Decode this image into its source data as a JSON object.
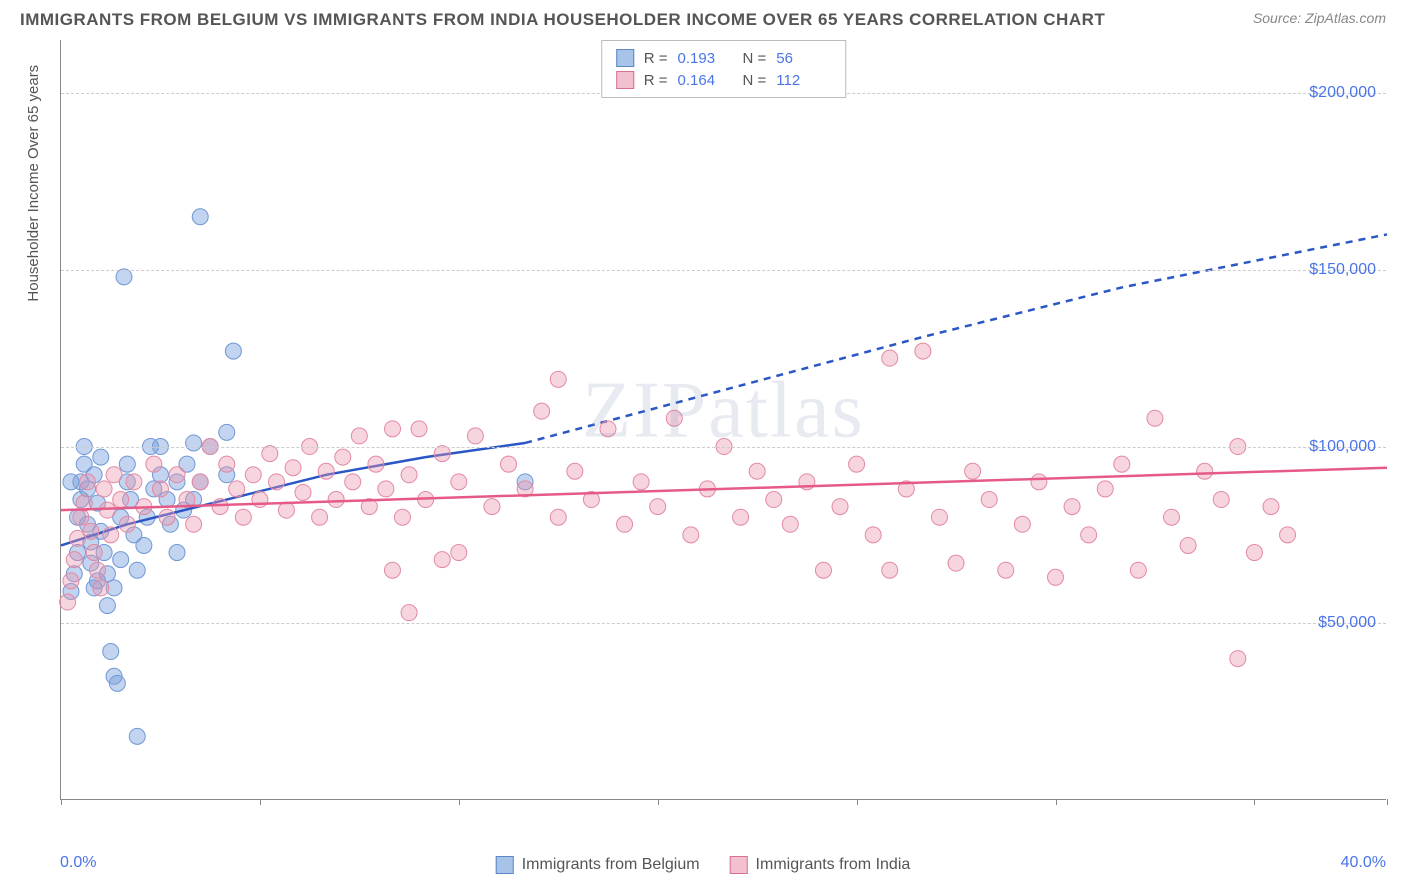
{
  "header": {
    "title": "IMMIGRANTS FROM BELGIUM VS IMMIGRANTS FROM INDIA HOUSEHOLDER INCOME OVER 65 YEARS CORRELATION CHART",
    "source": "Source: ZipAtlas.com"
  },
  "watermark": "ZIPatlas",
  "chart": {
    "type": "scatter",
    "x_axis": {
      "min": 0.0,
      "max": 40.0,
      "unit": "%",
      "label_min": "0.0%",
      "label_max": "40.0%",
      "tick_positions_pct": [
        0,
        15,
        30,
        45,
        60,
        75,
        90,
        100
      ]
    },
    "y_axis": {
      "title": "Householder Income Over 65 years",
      "min": 0,
      "max": 215000,
      "gridlines": [
        50000,
        100000,
        150000,
        200000
      ],
      "gridline_labels": [
        "$50,000",
        "$100,000",
        "$150,000",
        "$200,000"
      ],
      "grid_color": "#d0d0d0"
    },
    "series": [
      {
        "id": "belgium",
        "label": "Immigrants from Belgium",
        "color_fill": "rgba(120,160,220,0.45)",
        "color_stroke": "#6f98d6",
        "swatch_fill": "#a8c3e8",
        "swatch_border": "#5f86c7",
        "r_value": "0.193",
        "n_value": "56",
        "trend": {
          "color": "#2a56c6",
          "width": 2.5,
          "solid_end_x": 14.0,
          "points": [
            {
              "x": 0.0,
              "y": 72000
            },
            {
              "x": 2.0,
              "y": 78000
            },
            {
              "x": 5.0,
              "y": 85000
            },
            {
              "x": 8.0,
              "y": 92000
            },
            {
              "x": 11.0,
              "y": 97000
            },
            {
              "x": 14.0,
              "y": 101000
            },
            {
              "x": 20.0,
              "y": 116000
            },
            {
              "x": 26.0,
              "y": 131000
            },
            {
              "x": 32.0,
              "y": 145000
            },
            {
              "x": 40.0,
              "y": 160000
            }
          ]
        },
        "points": [
          {
            "x": 0.3,
            "y": 59000
          },
          {
            "x": 0.4,
            "y": 64000
          },
          {
            "x": 0.5,
            "y": 70000
          },
          {
            "x": 0.5,
            "y": 80000
          },
          {
            "x": 0.6,
            "y": 85000
          },
          {
            "x": 0.6,
            "y": 90000
          },
          {
            "x": 0.7,
            "y": 95000
          },
          {
            "x": 0.7,
            "y": 100000
          },
          {
            "x": 0.8,
            "y": 88000
          },
          {
            "x": 0.8,
            "y": 78000
          },
          {
            "x": 0.9,
            "y": 73000
          },
          {
            "x": 0.9,
            "y": 67000
          },
          {
            "x": 1.0,
            "y": 60000
          },
          {
            "x": 1.0,
            "y": 92000
          },
          {
            "x": 1.1,
            "y": 84000
          },
          {
            "x": 1.2,
            "y": 97000
          },
          {
            "x": 1.2,
            "y": 76000
          },
          {
            "x": 1.3,
            "y": 70000
          },
          {
            "x": 1.4,
            "y": 64000
          },
          {
            "x": 1.4,
            "y": 55000
          },
          {
            "x": 1.5,
            "y": 42000
          },
          {
            "x": 1.6,
            "y": 35000
          },
          {
            "x": 1.7,
            "y": 33000
          },
          {
            "x": 1.6,
            "y": 60000
          },
          {
            "x": 1.8,
            "y": 68000
          },
          {
            "x": 1.8,
            "y": 80000
          },
          {
            "x": 2.0,
            "y": 90000
          },
          {
            "x": 2.0,
            "y": 95000
          },
          {
            "x": 2.1,
            "y": 85000
          },
          {
            "x": 2.2,
            "y": 75000
          },
          {
            "x": 2.3,
            "y": 65000
          },
          {
            "x": 2.3,
            "y": 18000
          },
          {
            "x": 2.5,
            "y": 72000
          },
          {
            "x": 2.6,
            "y": 80000
          },
          {
            "x": 2.8,
            "y": 88000
          },
          {
            "x": 3.0,
            "y": 92000
          },
          {
            "x": 3.0,
            "y": 100000
          },
          {
            "x": 3.2,
            "y": 85000
          },
          {
            "x": 3.3,
            "y": 78000
          },
          {
            "x": 3.5,
            "y": 90000
          },
          {
            "x": 3.7,
            "y": 82000
          },
          {
            "x": 3.8,
            "y": 95000
          },
          {
            "x": 4.0,
            "y": 85000
          },
          {
            "x": 4.0,
            "y": 101000
          },
          {
            "x": 4.2,
            "y": 90000
          },
          {
            "x": 4.5,
            "y": 100000
          },
          {
            "x": 1.9,
            "y": 148000
          },
          {
            "x": 4.2,
            "y": 165000
          },
          {
            "x": 5.0,
            "y": 92000
          },
          {
            "x": 5.2,
            "y": 127000
          },
          {
            "x": 5.0,
            "y": 104000
          },
          {
            "x": 3.5,
            "y": 70000
          },
          {
            "x": 2.7,
            "y": 100000
          },
          {
            "x": 1.1,
            "y": 62000
          },
          {
            "x": 0.3,
            "y": 90000
          },
          {
            "x": 14.0,
            "y": 90000
          }
        ]
      },
      {
        "id": "india",
        "label": "Immigrants from India",
        "color_fill": "rgba(235,150,175,0.40)",
        "color_stroke": "#e389a3",
        "swatch_fill": "#f3c0cf",
        "swatch_border": "#d8708e",
        "r_value": "0.164",
        "n_value": "112",
        "trend": {
          "color": "#e65a88",
          "width": 2.5,
          "solid_end_x": 40.0,
          "points": [
            {
              "x": 0.0,
              "y": 82000
            },
            {
              "x": 10.0,
              "y": 85000
            },
            {
              "x": 20.0,
              "y": 88000
            },
            {
              "x": 30.0,
              "y": 91000
            },
            {
              "x": 40.0,
              "y": 94000
            }
          ]
        },
        "points": [
          {
            "x": 0.2,
            "y": 56000
          },
          {
            "x": 0.3,
            "y": 62000
          },
          {
            "x": 0.4,
            "y": 68000
          },
          {
            "x": 0.5,
            "y": 74000
          },
          {
            "x": 0.6,
            "y": 80000
          },
          {
            "x": 0.7,
            "y": 84000
          },
          {
            "x": 0.8,
            "y": 90000
          },
          {
            "x": 0.9,
            "y": 76000
          },
          {
            "x": 1.0,
            "y": 70000
          },
          {
            "x": 1.1,
            "y": 65000
          },
          {
            "x": 1.2,
            "y": 60000
          },
          {
            "x": 1.3,
            "y": 88000
          },
          {
            "x": 1.4,
            "y": 82000
          },
          {
            "x": 1.5,
            "y": 75000
          },
          {
            "x": 1.6,
            "y": 92000
          },
          {
            "x": 1.8,
            "y": 85000
          },
          {
            "x": 2.0,
            "y": 78000
          },
          {
            "x": 2.2,
            "y": 90000
          },
          {
            "x": 2.5,
            "y": 83000
          },
          {
            "x": 2.8,
            "y": 95000
          },
          {
            "x": 3.0,
            "y": 88000
          },
          {
            "x": 3.2,
            "y": 80000
          },
          {
            "x": 3.5,
            "y": 92000
          },
          {
            "x": 3.8,
            "y": 85000
          },
          {
            "x": 4.0,
            "y": 78000
          },
          {
            "x": 4.2,
            "y": 90000
          },
          {
            "x": 4.5,
            "y": 100000
          },
          {
            "x": 4.8,
            "y": 83000
          },
          {
            "x": 5.0,
            "y": 95000
          },
          {
            "x": 5.3,
            "y": 88000
          },
          {
            "x": 5.5,
            "y": 80000
          },
          {
            "x": 5.8,
            "y": 92000
          },
          {
            "x": 6.0,
            "y": 85000
          },
          {
            "x": 6.3,
            "y": 98000
          },
          {
            "x": 6.5,
            "y": 90000
          },
          {
            "x": 6.8,
            "y": 82000
          },
          {
            "x": 7.0,
            "y": 94000
          },
          {
            "x": 7.3,
            "y": 87000
          },
          {
            "x": 7.5,
            "y": 100000
          },
          {
            "x": 7.8,
            "y": 80000
          },
          {
            "x": 8.0,
            "y": 93000
          },
          {
            "x": 8.3,
            "y": 85000
          },
          {
            "x": 8.5,
            "y": 97000
          },
          {
            "x": 8.8,
            "y": 90000
          },
          {
            "x": 9.0,
            "y": 103000
          },
          {
            "x": 9.3,
            "y": 83000
          },
          {
            "x": 9.5,
            "y": 95000
          },
          {
            "x": 9.8,
            "y": 88000
          },
          {
            "x": 10.0,
            "y": 105000
          },
          {
            "x": 10.3,
            "y": 80000
          },
          {
            "x": 10.5,
            "y": 92000
          },
          {
            "x": 10.8,
            "y": 105000
          },
          {
            "x": 11.0,
            "y": 85000
          },
          {
            "x": 11.5,
            "y": 98000
          },
          {
            "x": 12.0,
            "y": 90000
          },
          {
            "x": 12.5,
            "y": 103000
          },
          {
            "x": 13.0,
            "y": 83000
          },
          {
            "x": 13.5,
            "y": 95000
          },
          {
            "x": 14.0,
            "y": 88000
          },
          {
            "x": 14.5,
            "y": 110000
          },
          {
            "x": 15.0,
            "y": 80000
          },
          {
            "x": 15.0,
            "y": 119000
          },
          {
            "x": 15.5,
            "y": 93000
          },
          {
            "x": 16.0,
            "y": 85000
          },
          {
            "x": 16.5,
            "y": 105000
          },
          {
            "x": 17.0,
            "y": 78000
          },
          {
            "x": 17.5,
            "y": 90000
          },
          {
            "x": 18.0,
            "y": 83000
          },
          {
            "x": 18.5,
            "y": 108000
          },
          {
            "x": 19.0,
            "y": 75000
          },
          {
            "x": 19.5,
            "y": 88000
          },
          {
            "x": 20.0,
            "y": 100000
          },
          {
            "x": 20.5,
            "y": 80000
          },
          {
            "x": 21.0,
            "y": 93000
          },
          {
            "x": 21.5,
            "y": 85000
          },
          {
            "x": 22.0,
            "y": 78000
          },
          {
            "x": 22.5,
            "y": 90000
          },
          {
            "x": 23.0,
            "y": 65000
          },
          {
            "x": 23.5,
            "y": 83000
          },
          {
            "x": 24.0,
            "y": 95000
          },
          {
            "x": 24.5,
            "y": 75000
          },
          {
            "x": 25.0,
            "y": 125000
          },
          {
            "x": 25.0,
            "y": 65000
          },
          {
            "x": 25.5,
            "y": 88000
          },
          {
            "x": 26.0,
            "y": 127000
          },
          {
            "x": 26.5,
            "y": 80000
          },
          {
            "x": 27.0,
            "y": 67000
          },
          {
            "x": 27.5,
            "y": 93000
          },
          {
            "x": 28.0,
            "y": 85000
          },
          {
            "x": 28.5,
            "y": 65000
          },
          {
            "x": 29.0,
            "y": 78000
          },
          {
            "x": 29.5,
            "y": 90000
          },
          {
            "x": 30.0,
            "y": 63000
          },
          {
            "x": 30.5,
            "y": 83000
          },
          {
            "x": 31.0,
            "y": 75000
          },
          {
            "x": 31.5,
            "y": 88000
          },
          {
            "x": 32.0,
            "y": 95000
          },
          {
            "x": 32.5,
            "y": 65000
          },
          {
            "x": 33.0,
            "y": 108000
          },
          {
            "x": 33.5,
            "y": 80000
          },
          {
            "x": 34.0,
            "y": 72000
          },
          {
            "x": 34.5,
            "y": 93000
          },
          {
            "x": 35.0,
            "y": 85000
          },
          {
            "x": 35.5,
            "y": 100000
          },
          {
            "x": 36.0,
            "y": 70000
          },
          {
            "x": 35.5,
            "y": 40000
          },
          {
            "x": 36.5,
            "y": 83000
          },
          {
            "x": 37.0,
            "y": 75000
          },
          {
            "x": 10.5,
            "y": 53000
          },
          {
            "x": 10.0,
            "y": 65000
          },
          {
            "x": 11.5,
            "y": 68000
          },
          {
            "x": 12.0,
            "y": 70000
          }
        ]
      }
    ],
    "marker_radius": 8,
    "background_color": "#ffffff",
    "legend_top": {
      "r_label": "R =",
      "n_label": "N ="
    }
  }
}
